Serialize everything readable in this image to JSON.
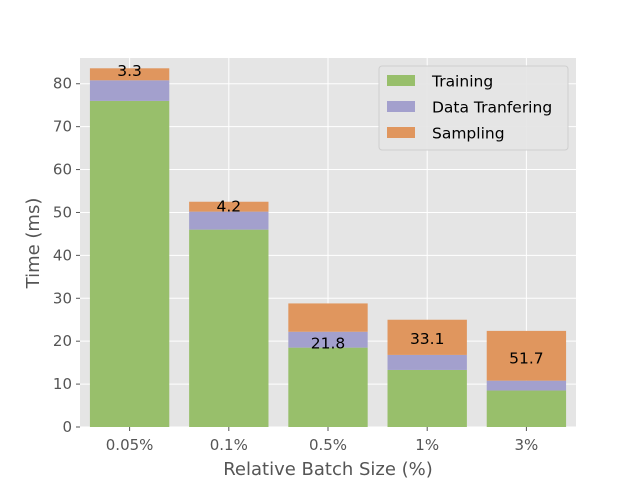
{
  "chart_data": {
    "type": "bar",
    "stacked": true,
    "title": "",
    "xlabel": "Relative Batch Size (%)",
    "ylabel": "Time (ms)",
    "categories": [
      "0.05%",
      "0.1%",
      "0.5%",
      "1%",
      "3%"
    ],
    "ylim": [
      0,
      86
    ],
    "yticks": [
      0,
      10,
      20,
      30,
      40,
      50,
      60,
      70,
      80
    ],
    "grid": true,
    "legend_position": "top-right",
    "series": [
      {
        "name": "Training",
        "color": "#98bf6b",
        "values": [
          76.0,
          46.0,
          18.5,
          13.3,
          8.5
        ]
      },
      {
        "name": "Data Tranfering",
        "color": "#a3a0cd",
        "values": [
          4.8,
          4.2,
          3.7,
          3.5,
          2.3
        ]
      },
      {
        "name": "Sampling",
        "color": "#e0965e",
        "values": [
          2.8,
          2.3,
          6.6,
          8.2,
          11.6
        ]
      }
    ],
    "annotations": [
      "3.3",
      "4.2",
      "21.8",
      "33.1",
      "51.7"
    ],
    "annotation_values": [
      83.0,
      51.4,
      19.5,
      20.5,
      16.0
    ]
  }
}
